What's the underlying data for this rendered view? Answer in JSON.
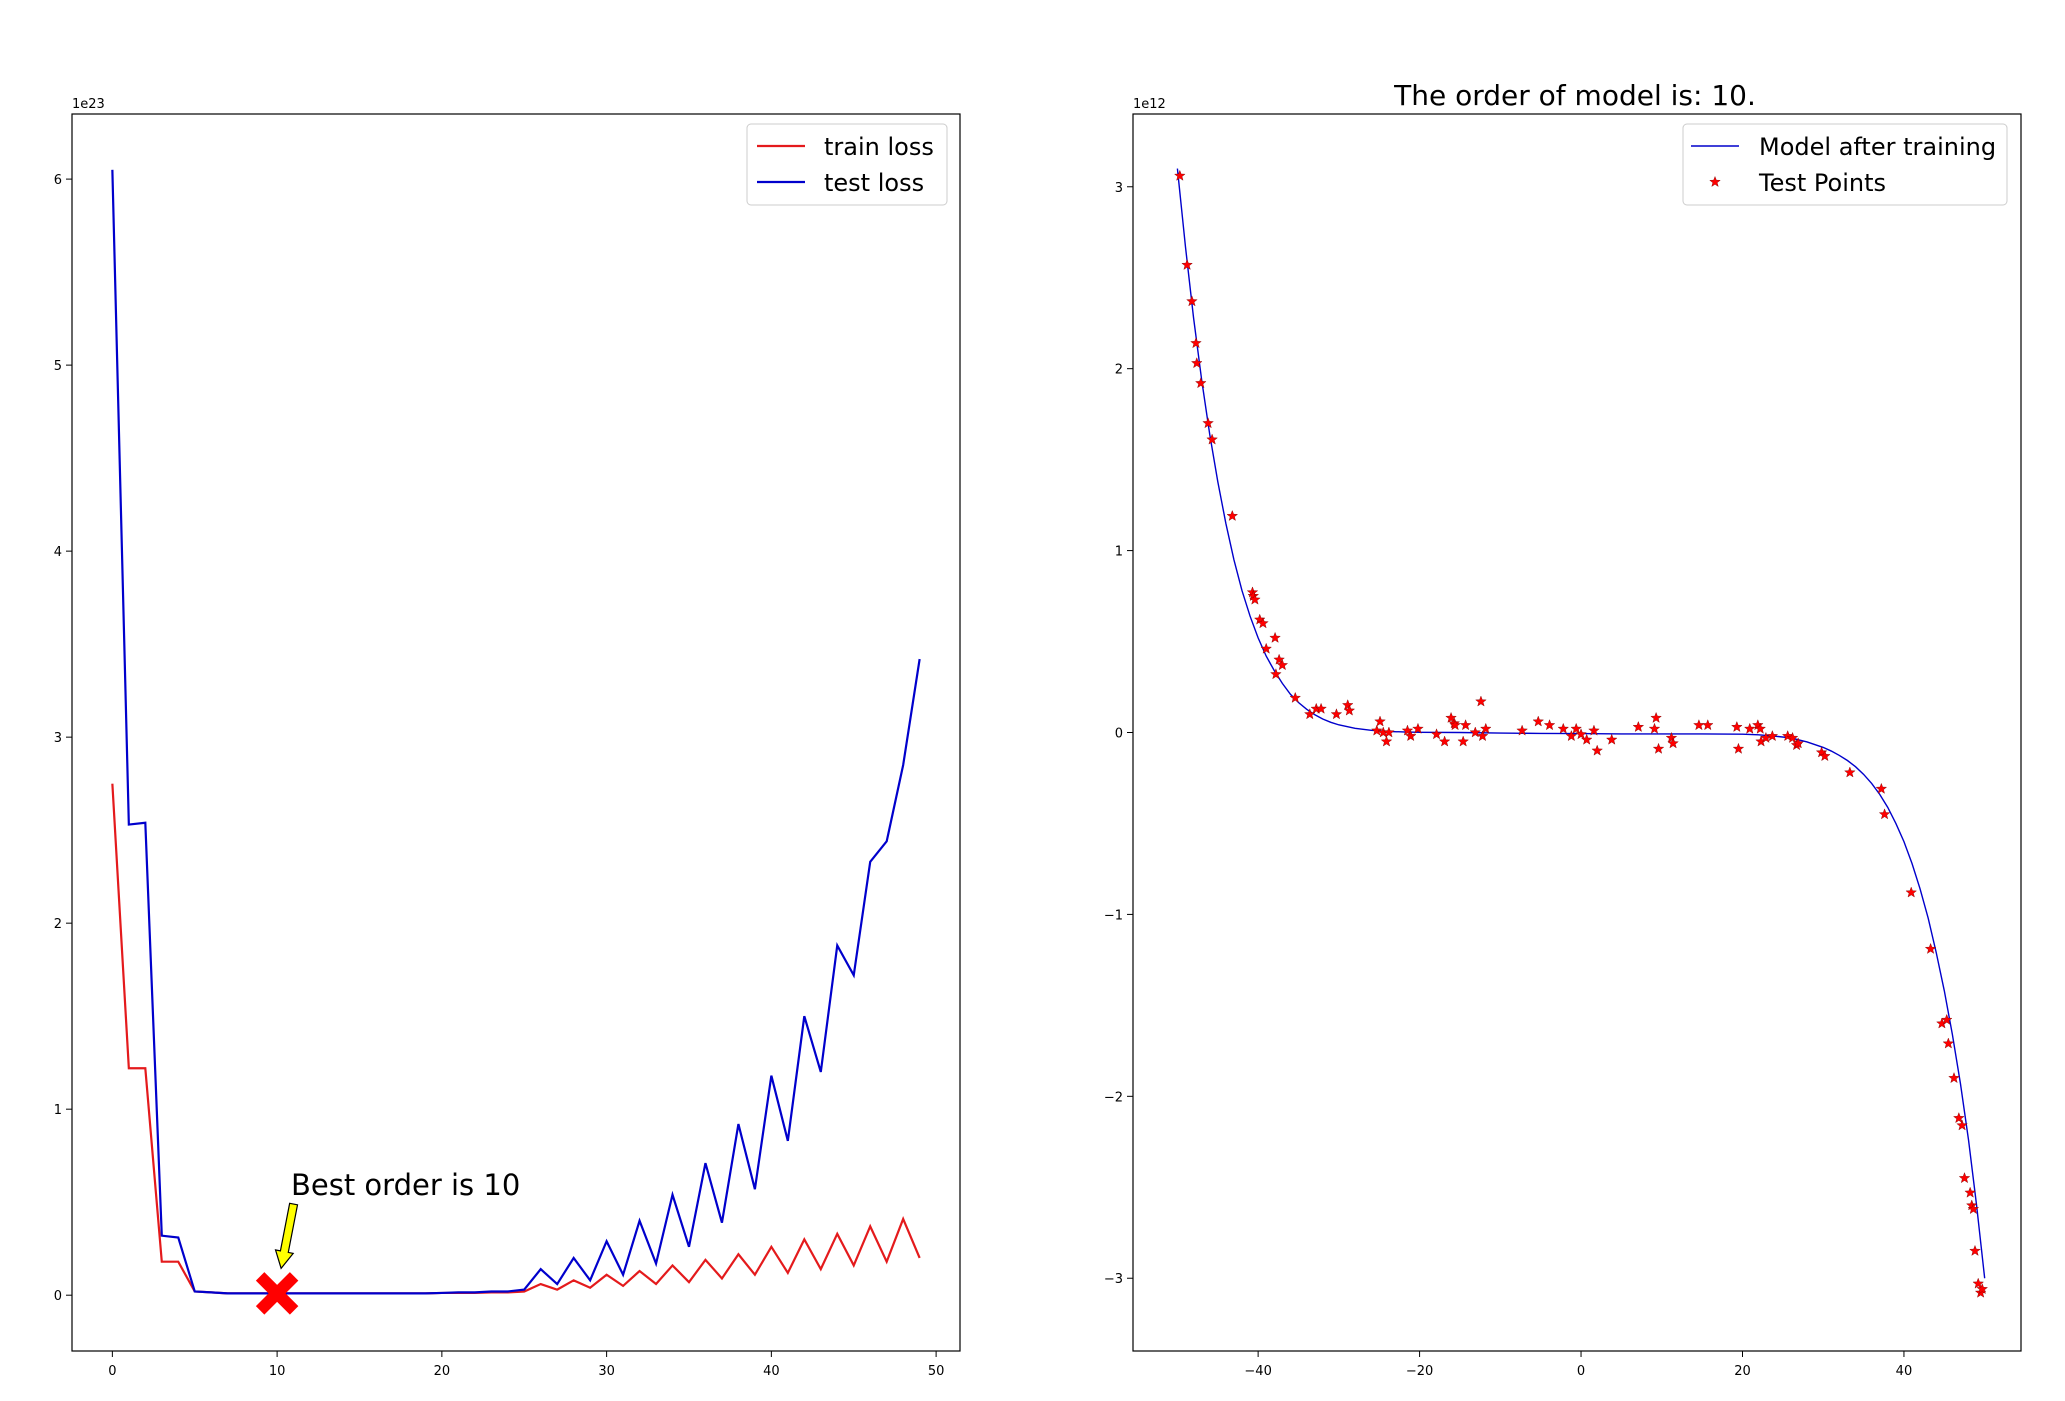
{
  "chart_data": [
    {
      "type": "line",
      "title": "",
      "xlabel": "",
      "ylabel": "",
      "offset_text": "1e23",
      "xlim": [
        -2.45,
        51.45
      ],
      "ylim": [
        -0.3,
        6.35
      ],
      "xticks": [
        0,
        10,
        20,
        30,
        40,
        50
      ],
      "xtick_labels": [
        "0",
        "10",
        "20",
        "30",
        "40",
        "50"
      ],
      "yticks": [
        0,
        1,
        2,
        3,
        4,
        5,
        6
      ],
      "ytick_labels": [
        "0",
        "1",
        "2",
        "3",
        "4",
        "5",
        "6"
      ],
      "grid": false,
      "legend_position": "upper right",
      "series": [
        {
          "name": "train loss",
          "color": "#e41a1c",
          "x": [
            0,
            1,
            2,
            3,
            4,
            5,
            6,
            7,
            8,
            9,
            10,
            11,
            12,
            13,
            14,
            15,
            16,
            17,
            18,
            19,
            20,
            21,
            22,
            23,
            24,
            25,
            26,
            27,
            28,
            29,
            30,
            31,
            32,
            33,
            34,
            35,
            36,
            37,
            38,
            39,
            40,
            41,
            42,
            43,
            44,
            45,
            46,
            47,
            48,
            49
          ],
          "y": [
            2.75,
            1.22,
            1.22,
            0.18,
            0.18,
            0.02,
            0.015,
            0.01,
            0.01,
            0.01,
            0.01,
            0.01,
            0.01,
            0.01,
            0.01,
            0.01,
            0.01,
            0.01,
            0.01,
            0.01,
            0.012,
            0.012,
            0.012,
            0.015,
            0.015,
            0.02,
            0.06,
            0.03,
            0.08,
            0.04,
            0.11,
            0.05,
            0.13,
            0.06,
            0.16,
            0.07,
            0.19,
            0.09,
            0.22,
            0.11,
            0.26,
            0.12,
            0.3,
            0.14,
            0.33,
            0.16,
            0.37,
            0.18,
            0.41,
            0.2
          ]
        },
        {
          "name": "test loss",
          "color": "#0000cc",
          "x": [
            0,
            1,
            2,
            3,
            4,
            5,
            6,
            7,
            8,
            9,
            10,
            11,
            12,
            13,
            14,
            15,
            16,
            17,
            18,
            19,
            20,
            21,
            22,
            23,
            24,
            25,
            26,
            27,
            28,
            29,
            30,
            31,
            32,
            33,
            34,
            35,
            36,
            37,
            38,
            39,
            40,
            41,
            42,
            43,
            44,
            45,
            46,
            47,
            48,
            49
          ],
          "y": [
            6.05,
            2.53,
            2.54,
            0.32,
            0.31,
            0.02,
            0.015,
            0.01,
            0.01,
            0.01,
            0.01,
            0.01,
            0.01,
            0.01,
            0.01,
            0.01,
            0.01,
            0.01,
            0.01,
            0.01,
            0.012,
            0.015,
            0.015,
            0.02,
            0.02,
            0.03,
            0.14,
            0.06,
            0.2,
            0.08,
            0.29,
            0.11,
            0.4,
            0.17,
            0.54,
            0.26,
            0.71,
            0.39,
            0.92,
            0.57,
            1.18,
            0.83,
            1.5,
            1.2,
            1.88,
            1.72,
            2.33,
            2.44,
            2.85,
            3.42
          ]
        }
      ],
      "annotation": {
        "text": "Best order is 10",
        "point": [
          10,
          0.01
        ],
        "text_anchor": [
          11,
          0.57
        ],
        "arrow_tail": [
          11,
          0.49
        ],
        "arrow_color": "#ffff00",
        "marker": "X",
        "marker_color": "#ff0000"
      }
    },
    {
      "type": "line",
      "title": "The order of model is: 10.",
      "xlabel": "",
      "ylabel": "",
      "offset_text": "1e12",
      "xlim": [
        -55.5,
        54.5
      ],
      "ylim": [
        -3.4,
        3.4
      ],
      "xticks": [
        -40,
        -20,
        0,
        20,
        40
      ],
      "xtick_labels": [
        "−40",
        "−20",
        "0",
        "20",
        "40"
      ],
      "yticks": [
        -3,
        -2,
        -1,
        0,
        1,
        2,
        3
      ],
      "ytick_labels": [
        "−3",
        "−2",
        "−1",
        "0",
        "1",
        "2",
        "3"
      ],
      "grid": false,
      "legend_position": "upper right",
      "model": {
        "name": "Model after training",
        "color": "#0000cc",
        "x": [
          -50,
          -49,
          -48,
          -47,
          -46,
          -45,
          -44,
          -43,
          -42,
          -41,
          -40,
          -39,
          -38,
          -37,
          -36,
          -35,
          -34,
          -33,
          -32,
          -31,
          -30,
          -28,
          -26,
          -24,
          -22,
          -20,
          -15,
          -10,
          -5,
          0,
          5,
          10,
          15,
          20,
          22,
          24,
          26,
          28,
          30,
          31,
          32,
          33,
          34,
          35,
          36,
          37,
          38,
          39,
          40,
          41,
          42,
          43,
          44,
          45,
          46,
          47,
          48,
          49,
          50
        ],
        "y": [
          3.1,
          2.67,
          2.28,
          1.94,
          1.64,
          1.38,
          1.15,
          0.95,
          0.78,
          0.64,
          0.52,
          0.42,
          0.34,
          0.27,
          0.21,
          0.165,
          0.128,
          0.098,
          0.074,
          0.056,
          0.042,
          0.023,
          0.012,
          0.006,
          0.003,
          0.001,
          0.0,
          -0.003,
          -0.005,
          -0.006,
          -0.008,
          -0.008,
          -0.008,
          -0.009,
          -0.013,
          -0.02,
          -0.03,
          -0.052,
          -0.082,
          -0.102,
          -0.126,
          -0.154,
          -0.188,
          -0.23,
          -0.28,
          -0.34,
          -0.412,
          -0.5,
          -0.6,
          -0.72,
          -0.86,
          -1.02,
          -1.21,
          -1.42,
          -1.66,
          -1.93,
          -2.24,
          -2.6,
          -3.0
        ]
      },
      "points": {
        "name": "Test Points",
        "color": "#ff0000",
        "x": [
          -49.7,
          -48.8,
          -48.2,
          -47.7,
          -47.6,
          -47.1,
          -46.2,
          -45.7,
          -43.2,
          -40.7,
          -40.6,
          -40.4,
          -39.8,
          -39.4,
          -39,
          -37.9,
          -37.8,
          -37.4,
          -37,
          -35.4,
          -33.6,
          -32.8,
          -32.2,
          -30.3,
          -28.9,
          -28.7,
          -25.3,
          -24.9,
          -24.5,
          -24.1,
          -23.8,
          -21.5,
          -21.1,
          -20.2,
          -17.9,
          -16.9,
          -16.1,
          -15.7,
          -15.6,
          -14.6,
          -14.3,
          -13.1,
          -12.4,
          -12.2,
          -11.8,
          -7.3,
          -5.3,
          -3.9,
          -2.2,
          -1.2,
          -0.6,
          0,
          0.7,
          1.6,
          2,
          3.8,
          7.1,
          9.1,
          9.3,
          9.6,
          11.2,
          11.4,
          14.6,
          15.7,
          19.3,
          19.5,
          20.9,
          21.9,
          22.2,
          22.3,
          22.9,
          23.7,
          25.6,
          26.2,
          26.7,
          26.9,
          29.8,
          30.2,
          33.3,
          37.2,
          37.6,
          40.9,
          43.3,
          44.7,
          45.3,
          45.5,
          46.2,
          46.8,
          47.2,
          47.5,
          48.2,
          48.4,
          48.6,
          48.8,
          49.2,
          49.5,
          49.7
        ],
        "y": [
          3.06,
          2.57,
          2.37,
          2.14,
          2.03,
          1.92,
          1.7,
          1.61,
          1.19,
          0.77,
          0.75,
          0.73,
          0.62,
          0.6,
          0.46,
          0.52,
          0.32,
          0.4,
          0.37,
          0.19,
          0.1,
          0.13,
          0.13,
          0.1,
          0.15,
          0.12,
          0.01,
          0.06,
          0.0,
          -0.05,
          0.0,
          0.01,
          -0.02,
          0.02,
          -0.01,
          -0.05,
          0.08,
          0.05,
          0.04,
          -0.05,
          0.04,
          0.0,
          0.17,
          -0.02,
          0.02,
          0.01,
          0.06,
          0.04,
          0.02,
          -0.02,
          0.02,
          -0.01,
          -0.04,
          0.01,
          -0.1,
          -0.04,
          0.03,
          0.02,
          0.08,
          -0.09,
          -0.03,
          -0.06,
          0.04,
          0.04,
          0.03,
          -0.09,
          0.02,
          0.04,
          0.02,
          -0.05,
          -0.03,
          -0.02,
          -0.02,
          -0.03,
          -0.07,
          -0.06,
          -0.11,
          -0.13,
          -0.22,
          -0.31,
          -0.45,
          -0.88,
          -1.19,
          -1.6,
          -1.58,
          -1.71,
          -1.9,
          -2.12,
          -2.16,
          -2.45,
          -2.53,
          -2.6,
          -2.62,
          -2.85,
          -3.03,
          -3.08,
          -3.06
        ]
      }
    }
  ]
}
